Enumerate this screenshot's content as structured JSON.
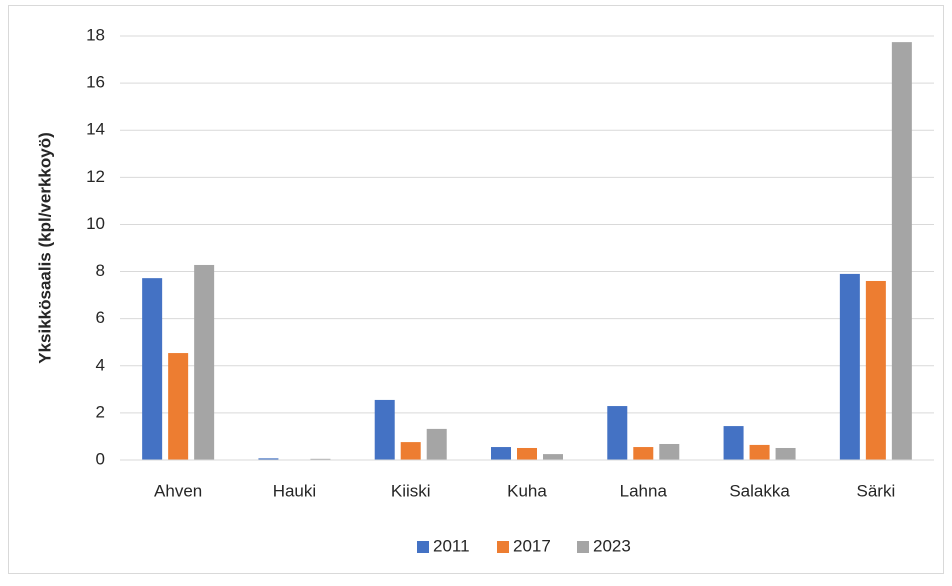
{
  "chart_data": {
    "type": "bar",
    "y_label": "Yksikkösaalis (kpl/verkkoyö)",
    "categories": [
      "Ahven",
      "Hauki",
      "Kiiski",
      "Kuha",
      "Lahna",
      "Salakka",
      "Särki"
    ],
    "series": [
      {
        "name": "2011",
        "color": "#4472c4",
        "values": [
          7.72,
          0.07,
          2.55,
          0.55,
          2.29,
          1.44,
          7.9
        ]
      },
      {
        "name": "2017",
        "color": "#ed7d31",
        "values": [
          4.54,
          0,
          0.76,
          0.51,
          0.55,
          0.64,
          7.6
        ]
      },
      {
        "name": "2023",
        "color": "#a5a5a5",
        "values": [
          8.28,
          0.05,
          1.32,
          0.25,
          0.68,
          0.51,
          17.74
        ]
      }
    ],
    "ylim": [
      0,
      18
    ],
    "yticks": [
      0,
      2,
      4,
      6,
      8,
      10,
      12,
      14,
      16,
      18
    ],
    "grid": true,
    "legend": "bottom"
  }
}
